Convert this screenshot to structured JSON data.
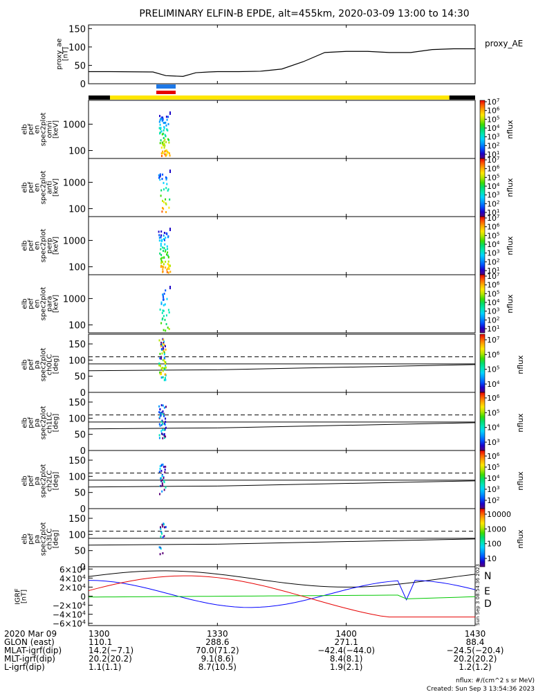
{
  "title": "PRELIMINARY ELFIN-B EPDE, alt=455km, 2020-03-09 13:00 to 14:30",
  "palette": [
    "#ffffff",
    "#5a007a",
    "#1a00c8",
    "#0050ff",
    "#0096ff",
    "#00d2ff",
    "#00e6b4",
    "#00dc6e",
    "#3cdc00",
    "#b4e600",
    "#ffe600",
    "#ffaa00",
    "#ff5a00",
    "#e60000"
  ],
  "chart_data": {
    "type": "spectrogram",
    "x_range_min": [
      0,
      90
    ],
    "ae_panel": {
      "ylabel": [
        "proxy_ae",
        "[nT]"
      ],
      "series_label": "proxy_AE",
      "ylim": [
        0,
        160
      ],
      "yticks": [
        "0",
        "50",
        "100",
        "150"
      ],
      "x_min": [
        0,
        5,
        15,
        18,
        22,
        25,
        28,
        30,
        35,
        40,
        45,
        50,
        55,
        60,
        65,
        70,
        75,
        80,
        85,
        90
      ],
      "y_nT": [
        33,
        33,
        32,
        22,
        20,
        30,
        32,
        33,
        33,
        34,
        40,
        60,
        85,
        88,
        88,
        85,
        85,
        93,
        95,
        95
      ]
    },
    "status_bar": {
      "black_until_min": 5,
      "yellow_until_min": 84
    },
    "spec_panels": [
      {
        "name": "omni",
        "ylabel": [
          "elb",
          "pef",
          "en",
          "spec2plot",
          "omni",
          "[keV]"
        ],
        "yticks": [
          "100",
          "1000"
        ]
      },
      {
        "name": "anti",
        "ylabel": [
          "elb",
          "pef",
          "en",
          "spec2plot",
          "anti",
          "[keV]"
        ],
        "yticks": [
          "100",
          "1000"
        ]
      },
      {
        "name": "perp",
        "ylabel": [
          "elb",
          "pef",
          "en",
          "spec2plot",
          "perp",
          "[keV]"
        ],
        "yticks": [
          "100",
          "1000"
        ]
      },
      {
        "name": "para",
        "ylabel": [
          "elb",
          "pef",
          "en",
          "spec2plot",
          "para",
          "[keV]"
        ],
        "yticks": [
          "100",
          "1000"
        ]
      }
    ],
    "spec_colorbar": {
      "label": "nflux",
      "ticks": [
        "10^1",
        "10^2",
        "10^3",
        "10^4",
        "10^5",
        "10^6",
        "10^7"
      ]
    },
    "pa_panels": [
      {
        "name": "ch0LC",
        "ylabel": [
          "elb",
          "pef",
          "pa",
          "spec2plot",
          "ch0LC",
          "[deg]"
        ],
        "yticks": [
          "0",
          "50",
          "100",
          "150"
        ],
        "cb_ticks": [
          "10^4",
          "10^5",
          "10^6",
          "10^7"
        ],
        "cb_label": "nflux"
      },
      {
        "name": "ch1LC",
        "ylabel": [
          "elb",
          "pef",
          "pa",
          "spec2plot",
          "ch1LC",
          "[deg]"
        ],
        "yticks": [
          "0",
          "50",
          "100",
          "150"
        ],
        "cb_ticks": [
          "10^3",
          "10^4",
          "10^5",
          "10^6"
        ],
        "cb_label": "nflux"
      },
      {
        "name": "ch2LC",
        "ylabel": [
          "elb",
          "pef",
          "pa",
          "spec2plot",
          "ch2LC",
          "[deg]"
        ],
        "yticks": [
          "0",
          "50",
          "100",
          "150"
        ],
        "cb_ticks": [
          "10^2",
          "10^3",
          "10^4",
          "10^5",
          "10^6"
        ],
        "cb_label": "nflux"
      },
      {
        "name": "ch3LC",
        "ylabel": [
          "elb",
          "pef",
          "pa",
          "spec2plot",
          "ch3LC",
          "[deg]"
        ],
        "yticks": [
          "0",
          "50",
          "100",
          "150"
        ],
        "cb_ticks": [
          "10",
          "100",
          "1000",
          "10000"
        ],
        "cb_label": "nflux"
      }
    ],
    "igrf_panel": {
      "ylabel": [
        "IGRF",
        "[nT]"
      ],
      "yticks": [
        "−6×10^4",
        "−4×10^4",
        "−2×10^4",
        "0",
        "2×10^4",
        "4×10^4",
        "6×10^4"
      ],
      "series": [
        {
          "name": "N",
          "color": "#0000ff"
        },
        {
          "name": "E",
          "color": "#00c800"
        },
        {
          "name": "D",
          "color": "#e60000"
        }
      ]
    },
    "side_stamp": "Sun Sep  3 08:54:36 2023",
    "x_tick_labels": [
      "1300",
      "1330",
      "1400",
      "1430"
    ],
    "x_tick_minutes": [
      0,
      30,
      60,
      90
    ]
  },
  "ephemeris": [
    {
      "label": "2020 Mar 09",
      "values": [
        "1300",
        "",
        "",
        ""
      ]
    },
    {
      "label": "GLON (east)",
      "values": [
        "110.1",
        "288.6",
        "271.1",
        "88.4"
      ]
    },
    {
      "label": "MLAT-igrf(dip)",
      "values": [
        "14.2(−7.1)",
        "70.0(71.2)",
        "−42.4(−44.0)",
        "−24.5(−20.4)"
      ]
    },
    {
      "label": "MLT-igrf(dip)",
      "values": [
        "20.2(20.2)",
        "9.1(8.6)",
        "8.4(8.1)",
        "20.2(20.2)"
      ]
    },
    {
      "label": "L-igrf(dip)",
      "values": [
        "1.1(1.1)",
        "8.7(10.5)",
        "1.9(2.1)",
        "1.2(1.2)"
      ]
    }
  ],
  "footer": {
    "units": "nflux: #/(cm^2 s sr MeV)",
    "created": "Created: Sun Sep  3 13:54:36 2023"
  }
}
